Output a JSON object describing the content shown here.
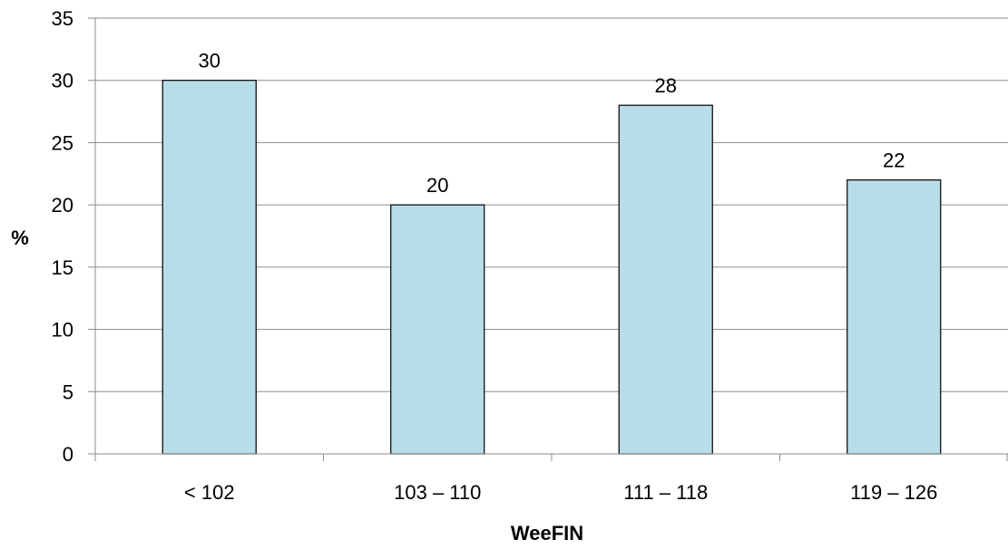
{
  "chart_data": {
    "type": "bar",
    "categories": [
      "< 102",
      "103 – 110",
      "111 – 118",
      "119 – 126"
    ],
    "values": [
      30,
      20,
      28,
      22
    ],
    "data_labels": [
      "30",
      "20",
      "28",
      "22"
    ],
    "title": "",
    "xlabel": "WeeFIN",
    "ylabel": "%",
    "ylim": [
      0,
      35
    ],
    "yticks": [
      0,
      5,
      10,
      15,
      20,
      25,
      30,
      35
    ],
    "grid": true,
    "legend": "none",
    "bar_color": "#b7dde8",
    "bar_edge_color": "#000000",
    "grid_color": "#8c8c8c"
  }
}
